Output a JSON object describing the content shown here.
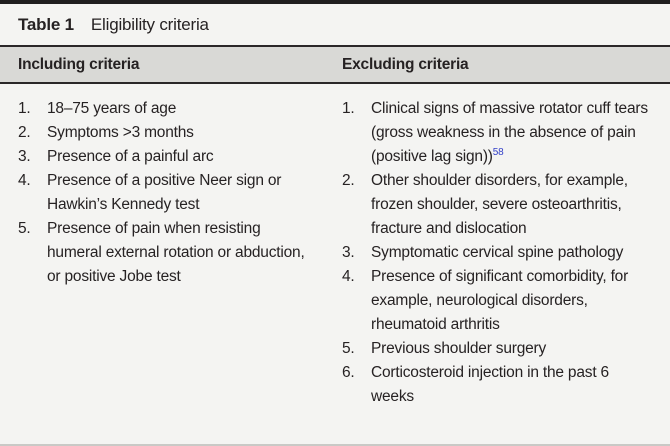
{
  "table": {
    "label": "Table 1",
    "title": "Eligibility criteria",
    "columns": [
      {
        "header": "Including criteria",
        "items": [
          {
            "text": "18–75 years of age"
          },
          {
            "text": "Symptoms >3 months"
          },
          {
            "text": "Presence of a painful arc"
          },
          {
            "text": "Presence of a positive Neer sign or Hawkin’s Kennedy test"
          },
          {
            "text": "Presence of pain when resisting humeral external rotation or abduction, or positive Jobe test"
          }
        ]
      },
      {
        "header": "Excluding criteria",
        "items": [
          {
            "text": "Clinical signs of massive rotator cuff tears (gross weakness in the absence of pain (positive lag sign))",
            "ref": "58"
          },
          {
            "text": "Other shoulder disorders, for example, frozen shoulder, severe osteoarthritis, fracture and dislocation"
          },
          {
            "text": "Symptomatic cervical spine pathology"
          },
          {
            "text": "Presence of significant comorbidity, for example, neurological disorders, rheumatoid arthritis"
          },
          {
            "text": "Previous shoulder surgery"
          },
          {
            "text": "Corticosteroid injection in the past 6 weeks"
          }
        ]
      }
    ]
  },
  "colors": {
    "background": "#f4f4f2",
    "header_band": "#d9d9d6",
    "text": "#262223",
    "rule_dark": "#2a2728",
    "rule_light": "#c9c9c6",
    "reference_link": "#3340c8"
  }
}
